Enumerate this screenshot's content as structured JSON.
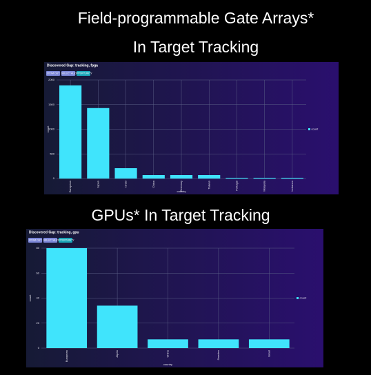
{
  "chart_data": [
    {
      "type": "bar",
      "heading": [
        "Field-programmable Gate Arrays*",
        "In Target Tracking"
      ],
      "title": "Discovered Gap: tracking, fpga",
      "buttons": [
        "ZOOM OUT",
        "SELECT ALL",
        "OPPORTUNITY"
      ],
      "xlabel": "country",
      "ylabel": "count",
      "categories": [
        "European",
        "Japan",
        "Israel",
        "China",
        "Germany",
        "Taiwan",
        "Portugal",
        "Malaysia",
        "Lebanon"
      ],
      "series": [
        {
          "name": "count",
          "color": "#40e4fc",
          "values": [
            1890,
            1430,
            210,
            70,
            70,
            70,
            15,
            15,
            15
          ]
        }
      ],
      "ylim": [
        0,
        2000
      ],
      "yticks": [
        0,
        500,
        1000,
        1500,
        2000
      ],
      "grid": true,
      "legend": "right"
    },
    {
      "type": "bar",
      "heading": [
        "GPUs* In Target Tracking"
      ],
      "title": "Discovered Gap: tracking, gpu",
      "buttons": [
        "ZOOM OUT",
        "SELECT ALL",
        "OPPORTUNITY"
      ],
      "xlabel": "country",
      "ylabel": "count",
      "categories": [
        "European",
        "Japan",
        "China",
        "Sweden",
        "Israel"
      ],
      "series": [
        {
          "name": "count",
          "color": "#40e4fc",
          "values": [
            80,
            34,
            7,
            7,
            7
          ]
        }
      ],
      "ylim": [
        0,
        80
      ],
      "yticks": [
        0,
        20,
        40,
        60,
        80
      ],
      "grid": true,
      "legend": "right"
    }
  ]
}
